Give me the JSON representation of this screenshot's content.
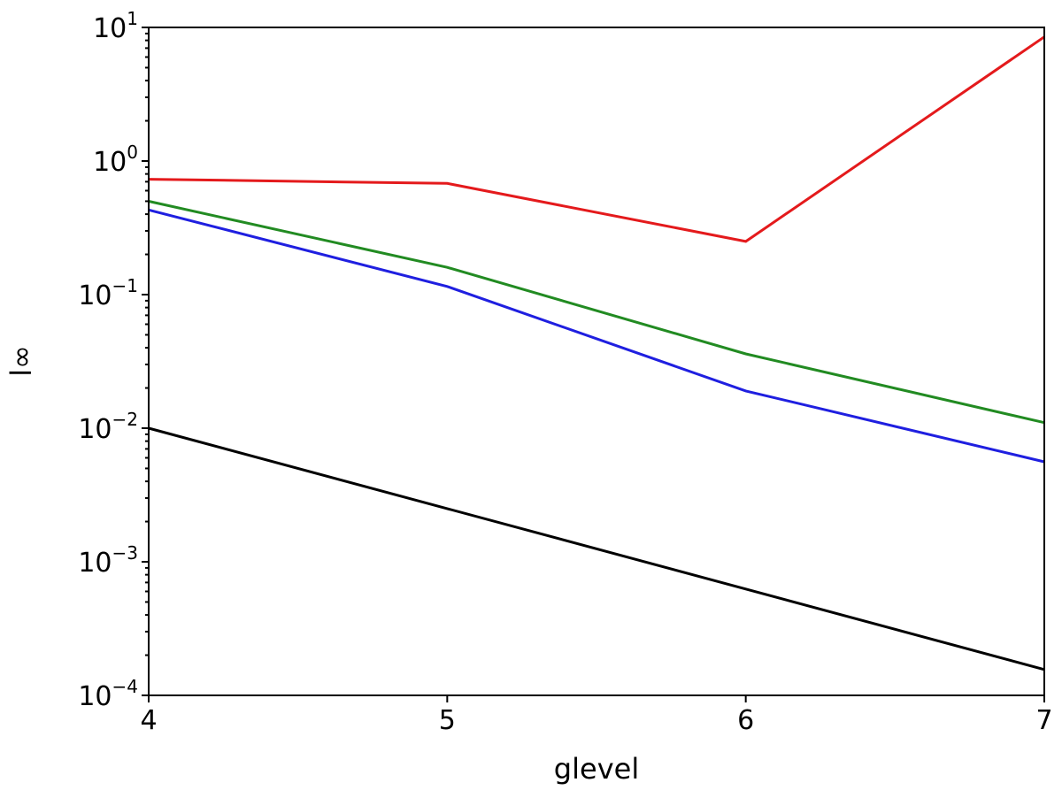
{
  "chart_data": {
    "type": "line",
    "title": "",
    "xlabel": "glevel",
    "ylabel": "l∞",
    "x": [
      4,
      5,
      6,
      7
    ],
    "xticks": [
      "4",
      "5",
      "6",
      "7"
    ],
    "xlim": [
      4,
      7
    ],
    "yscale": "log",
    "ylim": [
      0.0001,
      10
    ],
    "yticks": [
      {
        "base": "10",
        "exp": "1",
        "value": 10
      },
      {
        "base": "10",
        "exp": "0",
        "value": 1
      },
      {
        "base": "10",
        "exp": "−1",
        "value": 0.1
      },
      {
        "base": "10",
        "exp": "−2",
        "value": 0.01
      },
      {
        "base": "10",
        "exp": "−3",
        "value": 0.001
      },
      {
        "base": "10",
        "exp": "−4",
        "value": 0.0001
      }
    ],
    "grid": false,
    "series": [
      {
        "color": "#e41a1c",
        "values": [
          0.73,
          0.68,
          0.25,
          8.5
        ]
      },
      {
        "color": "#228b22",
        "values": [
          0.5,
          0.16,
          0.036,
          0.011
        ]
      },
      {
        "color": "#1f1fe0",
        "values": [
          0.43,
          0.115,
          0.019,
          0.0056
        ]
      },
      {
        "color": "#000000",
        "values": [
          0.01,
          0.0025,
          0.000625,
          0.000156
        ]
      }
    ]
  }
}
